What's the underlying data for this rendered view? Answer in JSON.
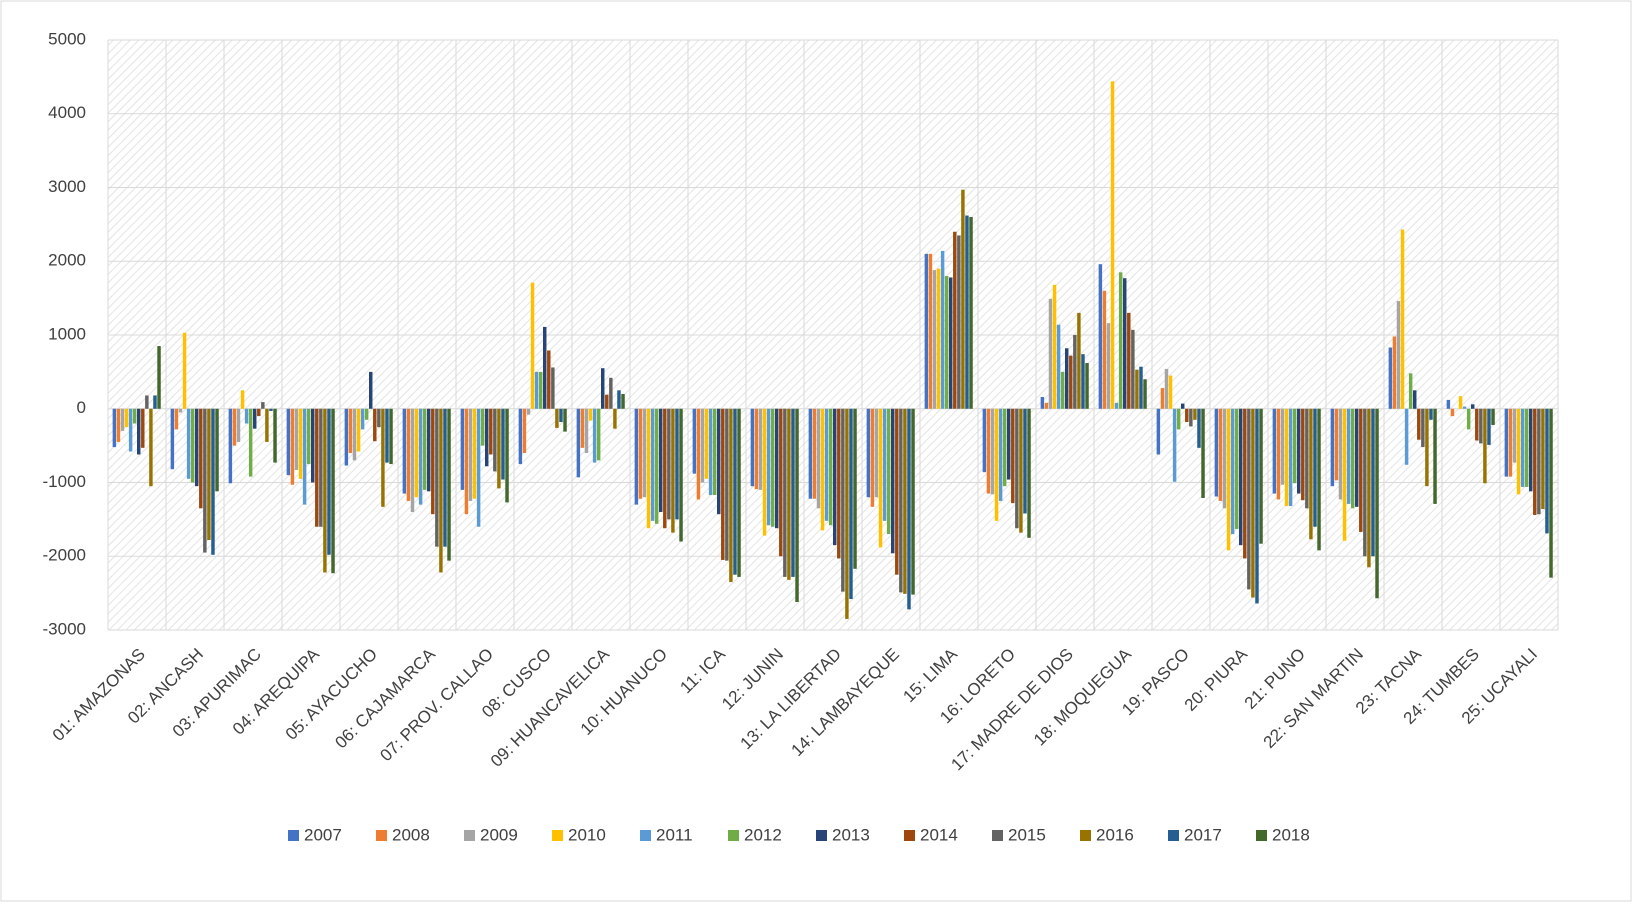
{
  "chart_data": {
    "type": "bar",
    "categories": [
      "01: AMAZONAS",
      "02: ANCASH",
      "03: APURIMAC",
      "04: AREQUIPA",
      "05: AYACUCHO",
      "06: CAJAMARCA",
      "07: PROV. CALLAO",
      "08: CUSCO",
      "09: HUANCAVELICA",
      "10: HUANUCO",
      "11: ICA",
      "12: JUNIN",
      "13: LA LIBERTAD",
      "14: LAMBAYEQUE",
      "15: LIMA",
      "16: LORETO",
      "17: MADRE DE DIOS",
      "18: MOQUEGUA",
      "19: PASCO",
      "20: PIURA",
      "21: PUNO",
      "22: SAN MARTIN",
      "23: TACNA",
      "24: TUMBES",
      "25: UCAYALI"
    ],
    "series": [
      {
        "name": "2007",
        "color": "#4472c4",
        "values": [
          -520,
          -820,
          -1010,
          -900,
          -770,
          -1150,
          -1100,
          -750,
          -930,
          -1300,
          -880,
          -1050,
          -1220,
          -1200,
          2100,
          -860,
          160,
          1960,
          -620,
          -1190,
          -1150,
          -1050,
          830,
          120,
          -920
        ]
      },
      {
        "name": "2008",
        "color": "#ed7d31",
        "values": [
          -450,
          -280,
          -500,
          -1030,
          -600,
          -1250,
          -1430,
          -600,
          -530,
          -1220,
          -1230,
          -1090,
          -1220,
          -1330,
          2100,
          -1150,
          80,
          1600,
          280,
          -1250,
          -1230,
          -970,
          980,
          -100,
          -920
        ]
      },
      {
        "name": "2009",
        "color": "#a5a5a5",
        "values": [
          -300,
          -50,
          -450,
          -830,
          -700,
          -1400,
          -1250,
          -80,
          -600,
          -1200,
          -1000,
          -1100,
          -1350,
          -1200,
          1880,
          -1160,
          1490,
          1160,
          540,
          -1350,
          -1030,
          -1230,
          1460,
          0,
          -730
        ]
      },
      {
        "name": "2010",
        "color": "#ffc000",
        "values": [
          -250,
          1030,
          250,
          -950,
          -580,
          -1200,
          -1220,
          1710,
          -160,
          -1620,
          -950,
          -1720,
          -1650,
          -1880,
          1900,
          -1520,
          1680,
          4440,
          450,
          -1920,
          -1320,
          -1790,
          2430,
          170,
          -1160
        ]
      },
      {
        "name": "2011",
        "color": "#5b9bd5",
        "values": [
          -580,
          -950,
          -200,
          -1300,
          -280,
          -1300,
          -1600,
          500,
          -730,
          -1520,
          -1170,
          -1580,
          -1520,
          -1520,
          2140,
          -1250,
          1140,
          80,
          -990,
          -1700,
          -1320,
          -1290,
          -760,
          30,
          -1060
        ]
      },
      {
        "name": "2012",
        "color": "#70ad47",
        "values": [
          -200,
          -1000,
          -920,
          -750,
          -150,
          -1100,
          -500,
          500,
          -700,
          -1560,
          -1170,
          -1600,
          -1580,
          -1700,
          1800,
          -1050,
          500,
          1850,
          -280,
          -1630,
          -1010,
          -1350,
          480,
          -280,
          -1060
        ]
      },
      {
        "name": "2013",
        "color": "#264478",
        "values": [
          -620,
          -1050,
          -270,
          -1000,
          500,
          -1120,
          -780,
          1110,
          550,
          -1400,
          -1430,
          -1620,
          -1850,
          -1960,
          1780,
          -960,
          820,
          1770,
          70,
          -1850,
          -1150,
          -1330,
          250,
          60,
          -1120
        ]
      },
      {
        "name": "2014",
        "color": "#9e480e",
        "values": [
          -530,
          -1350,
          -100,
          -1600,
          -440,
          -1430,
          -620,
          790,
          190,
          -1620,
          -2050,
          -2000,
          -2030,
          -2250,
          2400,
          -1280,
          720,
          1300,
          -180,
          -2030,
          -1240,
          -1670,
          -420,
          -430,
          -1440
        ]
      },
      {
        "name": "2015",
        "color": "#636363",
        "values": [
          180,
          -1950,
          90,
          -1600,
          -250,
          -1870,
          -850,
          560,
          420,
          -1500,
          -2060,
          -2280,
          -2480,
          -2490,
          2350,
          -1620,
          1000,
          1070,
          -240,
          -2450,
          -1350,
          -2000,
          -520,
          -470,
          -1430
        ]
      },
      {
        "name": "2016",
        "color": "#997300",
        "values": [
          -1050,
          -1780,
          -450,
          -2220,
          -1330,
          -2220,
          -1080,
          -260,
          -270,
          -1680,
          -2350,
          -2320,
          -2850,
          -2510,
          2970,
          -1680,
          1300,
          530,
          -150,
          -2560,
          -1770,
          -2150,
          -1050,
          -1010,
          -1360
        ]
      },
      {
        "name": "2017",
        "color": "#255e91",
        "values": [
          180,
          -1980,
          -30,
          -1980,
          -730,
          -1870,
          -960,
          -180,
          250,
          -1500,
          -2250,
          -2280,
          -2580,
          -2720,
          2620,
          -1420,
          740,
          570,
          -530,
          -2640,
          -1600,
          -2000,
          -150,
          -490,
          -1690
        ]
      },
      {
        "name": "2018",
        "color": "#43682b",
        "values": [
          850,
          -1120,
          -730,
          -2230,
          -750,
          -2060,
          -1270,
          -310,
          200,
          -1800,
          -2280,
          -2620,
          -2170,
          -2520,
          2600,
          -1750,
          620,
          400,
          -1210,
          -1830,
          -1920,
          -2570,
          -1290,
          -220,
          -2290
        ]
      }
    ],
    "ylim": [
      -3000,
      5000
    ],
    "yticks": [
      -3000,
      -2000,
      -1000,
      0,
      1000,
      2000,
      3000,
      4000,
      5000
    ],
    "grid": true,
    "legend": "bottom"
  }
}
